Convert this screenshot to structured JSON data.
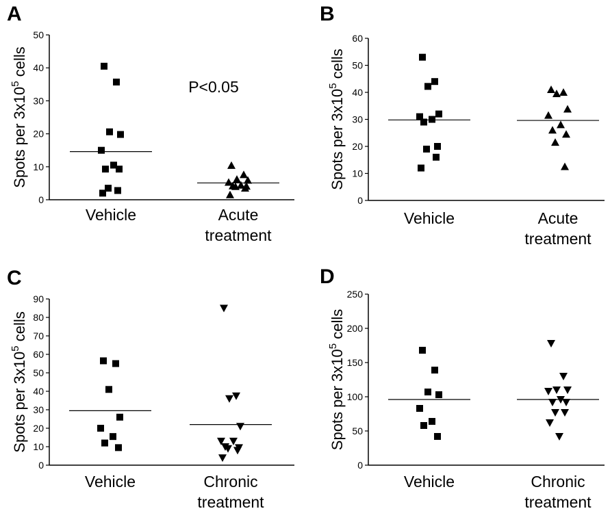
{
  "chart_data": [
    {
      "type": "scatter",
      "panel": "A",
      "ylabel": "Spots per 3x10^5 cells",
      "ylim": [
        0,
        50
      ],
      "yticks": [
        0,
        10,
        20,
        30,
        40,
        50
      ],
      "categories": [
        "Vehicle",
        "Acute\ntreatment"
      ],
      "annotation": "P<0.05",
      "series": [
        {
          "marker": "square",
          "category": 0,
          "values": [
            40.5,
            35.7,
            20.6,
            19.8,
            15,
            10.5,
            9.3,
            9.3,
            3.5,
            2.8,
            2
          ],
          "mean": 14.6
        },
        {
          "marker": "triangle-up",
          "category": 1,
          "values": [
            10.4,
            7.6,
            6.2,
            5.9,
            5.3,
            4.4,
            4.2,
            4.1,
            4,
            3.5,
            1.5
          ],
          "mean": 5.1
        }
      ]
    },
    {
      "type": "scatter",
      "panel": "B",
      "ylabel": "Spots per 3x10^5 cells",
      "ylim": [
        0,
        60
      ],
      "yticks": [
        0,
        10,
        20,
        30,
        40,
        50,
        60
      ],
      "categories": [
        "Vehicle",
        "Acute\ntreatment"
      ],
      "series": [
        {
          "marker": "square",
          "category": 0,
          "values": [
            53,
            44,
            42.2,
            32,
            31,
            30,
            29,
            20,
            19,
            16,
            12
          ],
          "mean": 29.8
        },
        {
          "marker": "triangle-up",
          "category": 1,
          "values": [
            41,
            40,
            39.5,
            33.8,
            31.5,
            28,
            26,
            24.5,
            21.5,
            12.5
          ],
          "mean": 29.6
        }
      ]
    },
    {
      "type": "scatter",
      "panel": "C",
      "ylabel": "Spots per 3x10^5 cells",
      "ylim": [
        0,
        90
      ],
      "yticks": [
        0,
        10,
        20,
        30,
        40,
        50,
        60,
        70,
        80,
        90
      ],
      "categories": [
        "Vehicle",
        "Chronic\ntreatment"
      ],
      "series": [
        {
          "marker": "square",
          "category": 0,
          "values": [
            56.5,
            55,
            41,
            26,
            20,
            15.5,
            12,
            9.5
          ],
          "mean": 29.5
        },
        {
          "marker": "triangle-down",
          "category": 1,
          "values": [
            85,
            37.5,
            36,
            21,
            13,
            13,
            10,
            9.5,
            9,
            8,
            4
          ],
          "mean": 22
        }
      ]
    },
    {
      "type": "scatter",
      "panel": "D",
      "ylabel": "Spots per 3x10^5 cells",
      "ylim": [
        0,
        250
      ],
      "yticks": [
        0,
        50,
        100,
        150,
        200,
        250
      ],
      "categories": [
        "Vehicle",
        "Chronic\ntreatment"
      ],
      "series": [
        {
          "marker": "square",
          "category": 0,
          "values": [
            168,
            139,
            107,
            103,
            83,
            64,
            58,
            42
          ],
          "mean": 96
        },
        {
          "marker": "triangle-down",
          "category": 1,
          "values": [
            178,
            130,
            110,
            110,
            108,
            96,
            92,
            92,
            77,
            77,
            62,
            42
          ],
          "mean": 96
        }
      ]
    }
  ]
}
